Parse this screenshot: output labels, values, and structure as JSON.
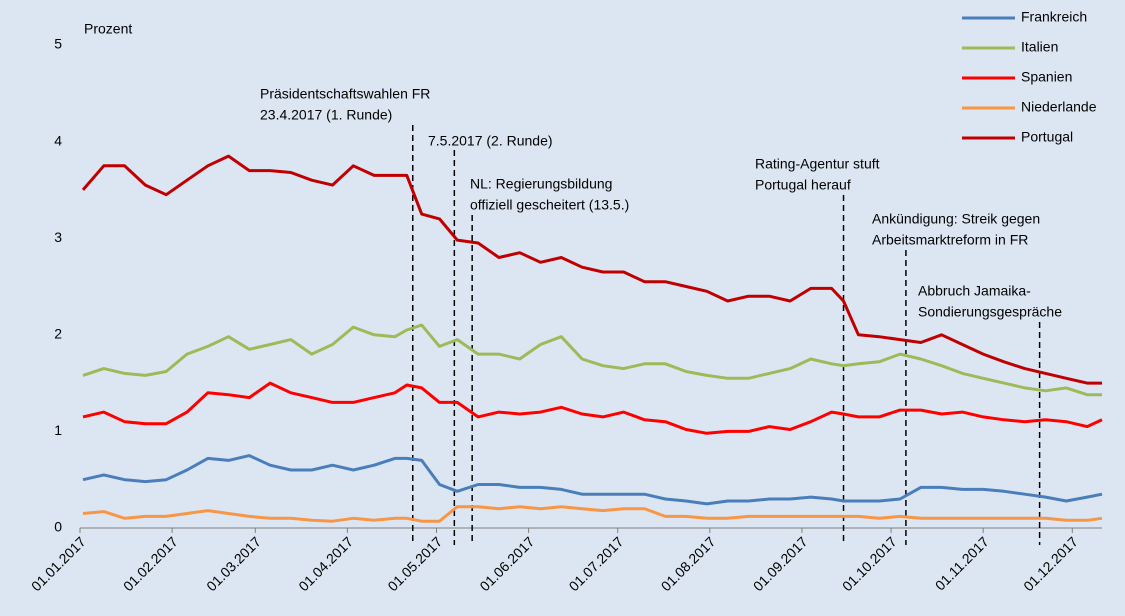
{
  "chart_data": {
    "type": "line",
    "ylabel": "Prozent",
    "x": [
      "2017-01-02",
      "2017-01-09",
      "2017-01-16",
      "2017-01-23",
      "2017-01-30",
      "2017-02-06",
      "2017-02-13",
      "2017-02-20",
      "2017-02-27",
      "2017-03-06",
      "2017-03-13",
      "2017-03-20",
      "2017-03-27",
      "2017-04-03",
      "2017-04-10",
      "2017-04-17",
      "2017-04-21",
      "2017-04-26",
      "2017-05-02",
      "2017-05-08",
      "2017-05-15",
      "2017-05-22",
      "2017-05-29",
      "2017-06-05",
      "2017-06-12",
      "2017-06-19",
      "2017-06-26",
      "2017-07-03",
      "2017-07-10",
      "2017-07-17",
      "2017-07-24",
      "2017-07-31",
      "2017-08-07",
      "2017-08-14",
      "2017-08-21",
      "2017-08-28",
      "2017-09-04",
      "2017-09-11",
      "2017-09-15",
      "2017-09-20",
      "2017-09-27",
      "2017-10-04",
      "2017-10-11",
      "2017-10-18",
      "2017-10-25",
      "2017-11-01",
      "2017-11-08",
      "2017-11-15",
      "2017-11-22",
      "2017-11-29",
      "2017-12-06",
      "2017-12-11"
    ],
    "series": [
      {
        "name": "Frankreich",
        "color": "#4a7ebb",
        "values": [
          0.5,
          0.55,
          0.5,
          0.48,
          0.5,
          0.6,
          0.72,
          0.7,
          0.75,
          0.65,
          0.6,
          0.6,
          0.65,
          0.6,
          0.65,
          0.72,
          0.72,
          0.7,
          0.45,
          0.38,
          0.45,
          0.45,
          0.42,
          0.42,
          0.4,
          0.35,
          0.35,
          0.35,
          0.35,
          0.3,
          0.28,
          0.25,
          0.28,
          0.28,
          0.3,
          0.3,
          0.32,
          0.3,
          0.28,
          0.28,
          0.28,
          0.3,
          0.42,
          0.42,
          0.4,
          0.4,
          0.38,
          0.35,
          0.32,
          0.28,
          0.32,
          0.35
        ]
      },
      {
        "name": "Italien",
        "color": "#9bbb59",
        "values": [
          1.58,
          1.65,
          1.6,
          1.58,
          1.62,
          1.8,
          1.88,
          1.98,
          1.85,
          1.9,
          1.95,
          1.8,
          1.9,
          2.08,
          2.0,
          1.98,
          2.05,
          2.1,
          1.88,
          1.95,
          1.8,
          1.8,
          1.75,
          1.9,
          1.98,
          1.75,
          1.68,
          1.65,
          1.7,
          1.7,
          1.62,
          1.58,
          1.55,
          1.55,
          1.6,
          1.65,
          1.75,
          1.7,
          1.68,
          1.7,
          1.72,
          1.8,
          1.75,
          1.68,
          1.6,
          1.55,
          1.5,
          1.45,
          1.42,
          1.45,
          1.38,
          1.38
        ]
      },
      {
        "name": "Spanien",
        "color": "#ff0000",
        "values": [
          1.15,
          1.2,
          1.1,
          1.08,
          1.08,
          1.2,
          1.4,
          1.38,
          1.35,
          1.5,
          1.4,
          1.35,
          1.3,
          1.3,
          1.35,
          1.4,
          1.48,
          1.45,
          1.3,
          1.3,
          1.15,
          1.2,
          1.18,
          1.2,
          1.25,
          1.18,
          1.15,
          1.2,
          1.12,
          1.1,
          1.02,
          0.98,
          1.0,
          1.0,
          1.05,
          1.02,
          1.1,
          1.2,
          1.18,
          1.15,
          1.15,
          1.22,
          1.22,
          1.18,
          1.2,
          1.15,
          1.12,
          1.1,
          1.12,
          1.1,
          1.05,
          1.12
        ]
      },
      {
        "name": "Niederlande",
        "color": "#f79646",
        "values": [
          0.15,
          0.17,
          0.1,
          0.12,
          0.12,
          0.15,
          0.18,
          0.15,
          0.12,
          0.1,
          0.1,
          0.08,
          0.07,
          0.1,
          0.08,
          0.1,
          0.1,
          0.07,
          0.07,
          0.22,
          0.22,
          0.2,
          0.22,
          0.2,
          0.22,
          0.2,
          0.18,
          0.2,
          0.2,
          0.12,
          0.12,
          0.1,
          0.1,
          0.12,
          0.12,
          0.12,
          0.12,
          0.12,
          0.12,
          0.12,
          0.1,
          0.12,
          0.1,
          0.1,
          0.1,
          0.1,
          0.1,
          0.1,
          0.1,
          0.08,
          0.08,
          0.1
        ]
      },
      {
        "name": "Portugal",
        "color": "#c00000",
        "values": [
          3.5,
          3.75,
          3.75,
          3.55,
          3.45,
          3.6,
          3.75,
          3.85,
          3.7,
          3.7,
          3.68,
          3.6,
          3.55,
          3.75,
          3.65,
          3.65,
          3.65,
          3.25,
          3.2,
          2.98,
          2.95,
          2.8,
          2.85,
          2.75,
          2.8,
          2.7,
          2.65,
          2.65,
          2.55,
          2.55,
          2.5,
          2.45,
          2.35,
          2.4,
          2.4,
          2.35,
          2.48,
          2.48,
          2.35,
          2.0,
          1.98,
          1.95,
          1.92,
          2.0,
          1.9,
          1.8,
          1.72,
          1.65,
          1.6,
          1.55,
          1.5,
          1.5
        ]
      }
    ],
    "xlim": [
      "2017-01-01",
      "2017-12-11"
    ],
    "xticks": [
      {
        "value": "2017-01-01",
        "label": "01.01.2017"
      },
      {
        "value": "2017-02-01",
        "label": "01.02.2017"
      },
      {
        "value": "2017-03-01",
        "label": "01.03.2017"
      },
      {
        "value": "2017-04-01",
        "label": "01.04.2017"
      },
      {
        "value": "2017-05-01",
        "label": "01.05.2017"
      },
      {
        "value": "2017-06-01",
        "label": "01.06.2017"
      },
      {
        "value": "2017-07-01",
        "label": "01.07.2017"
      },
      {
        "value": "2017-08-01",
        "label": "01.08.2017"
      },
      {
        "value": "2017-09-01",
        "label": "01.09.2017"
      },
      {
        "value": "2017-10-01",
        "label": "01.10.2017"
      },
      {
        "value": "2017-11-01",
        "label": "01.11.2017"
      },
      {
        "value": "2017-12-01",
        "label": "01.12.2017"
      }
    ],
    "ylim": [
      0,
      5
    ],
    "yticks": [
      0,
      1,
      2,
      3,
      4,
      5
    ],
    "legend": "top-right",
    "annotations": [
      {
        "x": "2017-04-23",
        "lines": [
          "Präsidentschaftswahlen FR",
          "23.4.2017 (1. Runde)"
        ]
      },
      {
        "x": "2017-05-07",
        "lines": [
          "7.5.2017 (2. Runde)"
        ]
      },
      {
        "x": "2017-05-13",
        "lines": [
          "NL: Regierungsbildung",
          "offiziell gescheitert (13.5.)"
        ]
      },
      {
        "x": "2017-09-15",
        "lines": [
          "Rating-Agentur stuft",
          "Portugal herauf"
        ]
      },
      {
        "x": "2017-10-06",
        "lines": [
          "Ankündigung: Streik gegen",
          "Arbeitsmarktreform in FR"
        ]
      },
      {
        "x": "2017-11-20",
        "lines": [
          "Abbruch Jamaika-",
          "Sondierungsgespräche"
        ]
      }
    ]
  }
}
